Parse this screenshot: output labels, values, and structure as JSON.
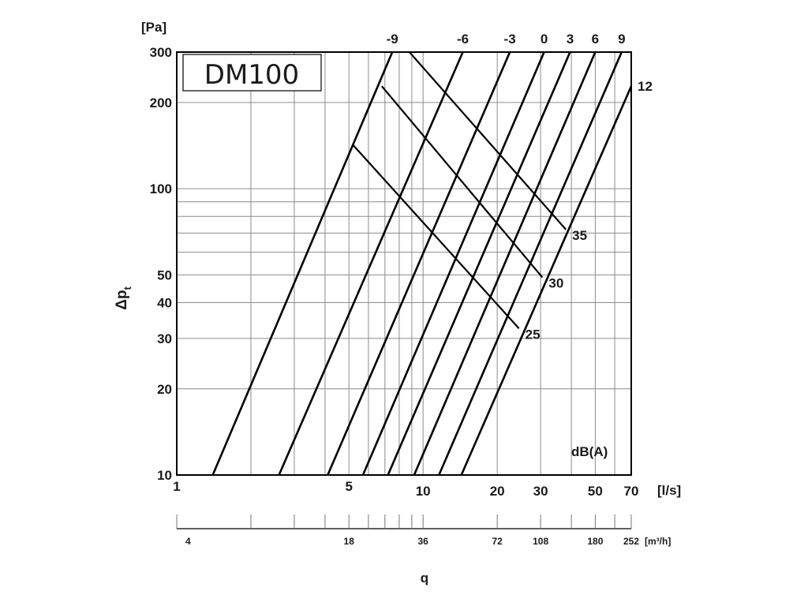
{
  "chart_data": {
    "type": "line",
    "model_label": "DM100",
    "x_unit_label": "[l/s]",
    "y_unit_label": "[Pa]",
    "ylabel_main": "Δp",
    "ylabel_sub": "t",
    "xlabel": "q",
    "legend_label": "dB(A)",
    "x_scale": "log",
    "y_scale": "log",
    "xlim": [
      1,
      70
    ],
    "ylim": [
      10,
      300
    ],
    "grid": true,
    "x_ticks": [
      1,
      5,
      10,
      20,
      30,
      50,
      70
    ],
    "x_tick_labels": [
      "1",
      "5",
      "10",
      "20",
      "30",
      "50",
      "70"
    ],
    "x_gridlines": [
      2,
      3,
      4,
      5,
      6,
      7,
      8,
      9,
      10,
      20,
      30,
      40,
      50,
      60
    ],
    "y_ticks": [
      10,
      20,
      30,
      40,
      50,
      100,
      200,
      300
    ],
    "y_tick_labels": [
      "10",
      "20",
      "30",
      "40",
      "50",
      "100",
      "200",
      "300"
    ],
    "y_gridlines": [
      20,
      30,
      40,
      50,
      60,
      70,
      80,
      90,
      100,
      200
    ],
    "secondary_x_axis": {
      "unit_label": "[m³/h]",
      "ticks": [
        4,
        18,
        36,
        72,
        108,
        180,
        252
      ],
      "tick_labels": [
        "4",
        "18",
        "36",
        "72",
        "108",
        "180",
        "252"
      ]
    },
    "series": [
      {
        "name": "-9",
        "points": [
          [
            1.4,
            10
          ],
          [
            7.5,
            300
          ]
        ]
      },
      {
        "name": "-6",
        "points": [
          [
            2.6,
            10
          ],
          [
            14.5,
            300
          ]
        ]
      },
      {
        "name": "-3",
        "points": [
          [
            4.1,
            10
          ],
          [
            22.5,
            300
          ]
        ]
      },
      {
        "name": "0",
        "points": [
          [
            5.7,
            10
          ],
          [
            31,
            300
          ]
        ]
      },
      {
        "name": "3",
        "points": [
          [
            7.2,
            10
          ],
          [
            39.5,
            300
          ]
        ]
      },
      {
        "name": "6",
        "points": [
          [
            9.2,
            10
          ],
          [
            50,
            300
          ]
        ]
      },
      {
        "name": "9",
        "points": [
          [
            11.6,
            10
          ],
          [
            64,
            300
          ]
        ]
      },
      {
        "name": "12",
        "points": [
          [
            14.3,
            10
          ],
          [
            70,
            228
          ]
        ]
      }
    ],
    "sound_lines": [
      {
        "name": "25",
        "points": [
          [
            5.2,
            142
          ],
          [
            24.5,
            32.5
          ]
        ]
      },
      {
        "name": "30",
        "points": [
          [
            6.8,
            228
          ],
          [
            30.5,
            49
          ]
        ]
      },
      {
        "name": "35",
        "points": [
          [
            8.8,
            300
          ],
          [
            38,
            72
          ]
        ]
      }
    ]
  }
}
